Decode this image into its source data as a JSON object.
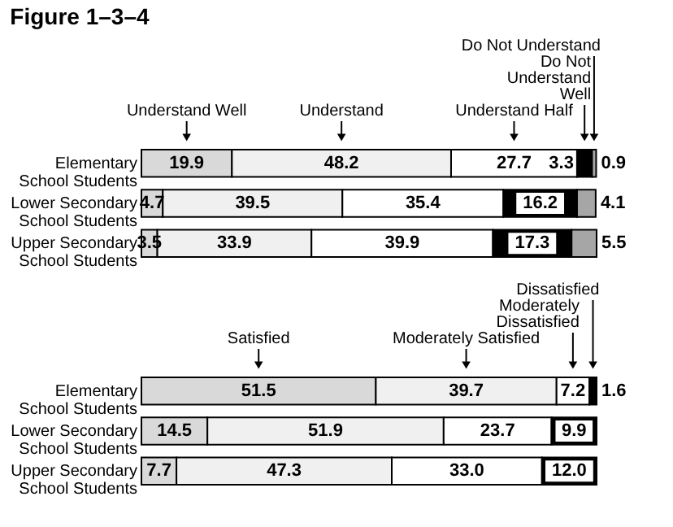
{
  "chart_data": [
    {
      "type": "bar",
      "orientation": "horizontal",
      "stacked": true,
      "title": "Figure 1–3–4",
      "tick_labels": "y",
      "categories": [
        "Elementary\nSchool Students",
        "Lower Secondary\nSchool Students",
        "Upper Secondary\nSchool Students"
      ],
      "series": [
        {
          "name": "Understand Well",
          "color": "#d9d9d9",
          "values": [
            19.9,
            4.7,
            3.5
          ],
          "value_labels": [
            "19.9",
            "4.7",
            "3.5"
          ]
        },
        {
          "name": "Understand",
          "color": "#f0f0f0",
          "values": [
            48.2,
            39.5,
            33.9
          ],
          "value_labels": [
            "48.2",
            "39.5",
            "33.9"
          ]
        },
        {
          "name": "Understand Half",
          "color": "#ffffff",
          "values": [
            27.7,
            35.4,
            39.9
          ],
          "value_labels": [
            "27.7",
            "35.4",
            "39.9"
          ]
        },
        {
          "name": "Do Not\nUnderstand\nWell",
          "color": "#000000",
          "values": [
            3.3,
            16.2,
            17.3
          ],
          "value_labels": [
            "3.3",
            "16.2",
            "17.3"
          ]
        },
        {
          "name": "Do Not Understand",
          "color": "#a6a6a6",
          "values": [
            0.9,
            4.1,
            5.5
          ],
          "value_labels": [
            "0.9",
            "4.1",
            "5.5"
          ]
        }
      ]
    },
    {
      "type": "bar",
      "orientation": "horizontal",
      "stacked": true,
      "tick_labels": "y",
      "categories": [
        "Elementary\nSchool Students",
        "Lower Secondary\nSchool Students",
        "Upper Secondary\nSchool Students"
      ],
      "series": [
        {
          "name": "Satisfied",
          "color": "#d9d9d9",
          "values": [
            51.5,
            14.5,
            7.7
          ],
          "value_labels": [
            "51.5",
            "14.5",
            "7.7"
          ]
        },
        {
          "name": "Moderately Satisfied",
          "color": "#f0f0f0",
          "values": [
            39.7,
            51.9,
            47.3
          ],
          "value_labels": [
            "39.7",
            "51.9",
            "47.3"
          ]
        },
        {
          "name": "Moderately\nDissatisfied",
          "color": "#ffffff",
          "values": [
            7.2,
            23.7,
            33.0
          ],
          "value_labels": [
            "7.2",
            "23.7",
            "33.0"
          ]
        },
        {
          "name": "Dissatisfied",
          "color": "#000000",
          "values": [
            1.6,
            9.9,
            12.0
          ],
          "value_labels": [
            "1.6",
            "9.9",
            "12.0"
          ]
        }
      ]
    }
  ]
}
